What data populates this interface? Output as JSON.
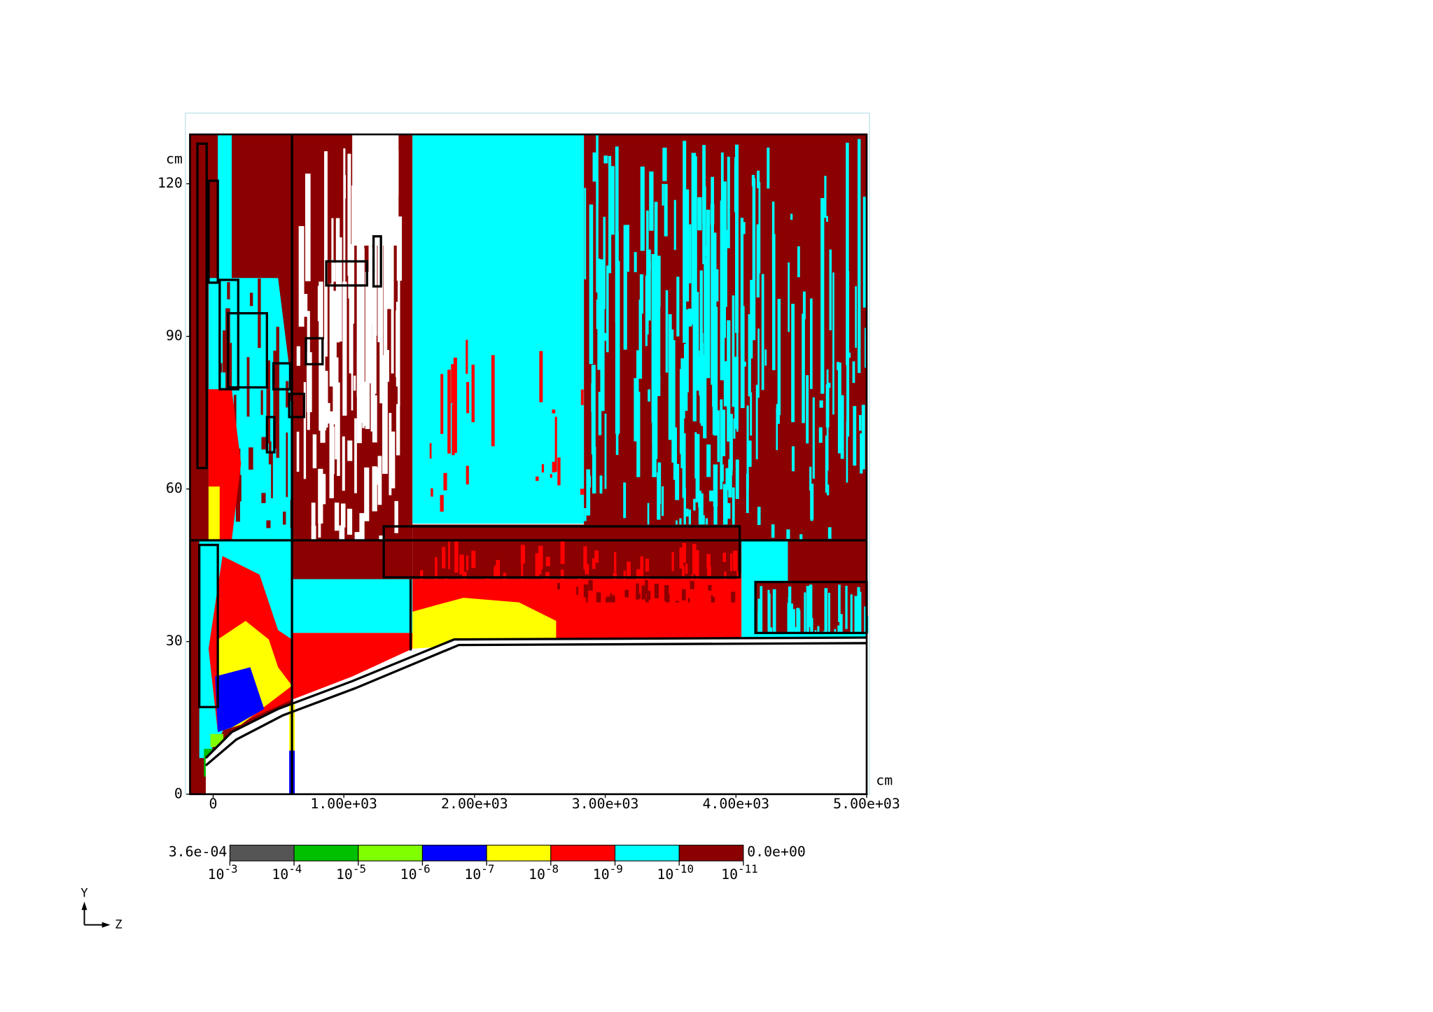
{
  "chart_data": {
    "type": "mesh-plot",
    "x_unit": "cm",
    "y_unit": "cm",
    "xlim": [
      -177,
      5000
    ],
    "ylim": [
      0,
      129.7
    ],
    "xticks": [
      0,
      {
        "value": 1000,
        "label": "1.00e+03"
      },
      {
        "value": 2000,
        "label": "2.00e+03"
      },
      {
        "value": 3000,
        "label": "3.00e+03"
      },
      {
        "value": 4000,
        "label": "4.00e+03"
      },
      {
        "value": 5000,
        "label": "5.00e+03"
      }
    ],
    "yticks": [
      0,
      30,
      60,
      90,
      120
    ],
    "colorbar": {
      "max_label": "3.6e-04",
      "min_label": "0.0e+00",
      "colors": [
        "#555555",
        "#00c000",
        "#80ff00",
        "#0000ff",
        "#ffff00",
        "#ff0000",
        "#00ffff",
        "#8b0000"
      ],
      "ticks": [
        {
          "value": 0.001,
          "label": "10",
          "exponent": "-3"
        },
        {
          "value": 0.0001,
          "label": "10",
          "exponent": "-4"
        },
        {
          "value": 1e-05,
          "label": "10",
          "exponent": "-5"
        },
        {
          "value": 1e-06,
          "label": "10",
          "exponent": "-6"
        },
        {
          "value": 1e-07,
          "label": "10",
          "exponent": "-7"
        },
        {
          "value": 1e-08,
          "label": "10",
          "exponent": "-8"
        },
        {
          "value": 1e-09,
          "label": "10",
          "exponent": "-9"
        },
        {
          "value": 1e-10,
          "label": "10",
          "exponent": "-10"
        },
        {
          "value": 1e-11,
          "label": "10",
          "exponent": "-11"
        }
      ]
    },
    "axes_glyph": {
      "vertical": "Y",
      "horizontal": "Z"
    }
  }
}
